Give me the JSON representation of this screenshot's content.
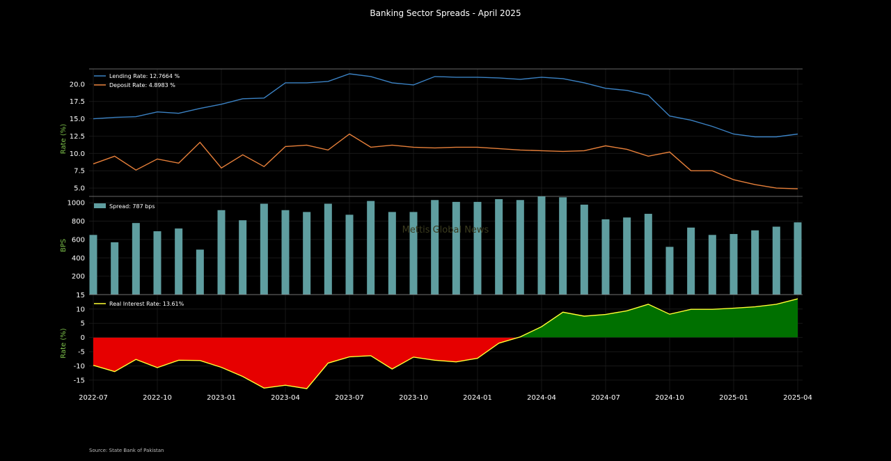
{
  "title": "Banking Sector Spreads - April 2025",
  "source": "Source: State Bank of Pakistan",
  "watermark": "Mettis Global News",
  "colors": {
    "lending": "#3b82c4",
    "deposit": "#e8803a",
    "spread_bar": "#5f9ea0",
    "real_line": "#ffff33",
    "positive_fill": "#007000",
    "negative_fill": "#e60000",
    "axis_label": "#7cc04a"
  },
  "chart_data": [
    {
      "type": "line",
      "ylabel": "Rate (%)",
      "yticks": [
        5.0,
        7.5,
        10.0,
        12.5,
        15.0,
        17.5,
        20.0
      ],
      "ylim": [
        3.8,
        22.2
      ],
      "grid": true,
      "legend_position": "top-left",
      "series": [
        {
          "name": "Lending Rate: 12.7664 %",
          "key": "lending",
          "values": [
            15.0,
            15.2,
            15.3,
            16.0,
            15.8,
            16.5,
            17.1,
            17.9,
            18.0,
            20.2,
            20.2,
            20.4,
            21.5,
            21.1,
            20.2,
            19.9,
            21.1,
            21.0,
            21.0,
            20.9,
            20.7,
            21.0,
            20.8,
            20.2,
            19.4,
            19.1,
            18.4,
            15.4,
            14.8,
            13.9,
            12.8,
            12.4,
            12.4,
            12.8
          ]
        },
        {
          "name": "Deposit Rate: 4.8983 %",
          "key": "deposit",
          "values": [
            8.5,
            9.6,
            7.6,
            9.2,
            8.6,
            11.6,
            7.9,
            9.8,
            8.1,
            11.0,
            11.2,
            10.5,
            12.8,
            10.9,
            11.2,
            10.9,
            10.8,
            10.9,
            10.9,
            10.7,
            10.5,
            10.4,
            10.3,
            10.4,
            11.1,
            10.6,
            9.6,
            10.2,
            7.5,
            7.5,
            6.2,
            5.5,
            5.0,
            4.9
          ]
        }
      ]
    },
    {
      "type": "bar",
      "ylabel": "BPS",
      "yticks": [
        200,
        400,
        600,
        800,
        1000
      ],
      "ylim": [
        0,
        1070
      ],
      "grid": true,
      "legend_position": "top-left",
      "series": [
        {
          "name": "Spread: 787 bps",
          "values": [
            650,
            570,
            780,
            690,
            720,
            490,
            920,
            810,
            990,
            920,
            900,
            990,
            870,
            1020,
            900,
            900,
            1030,
            1010,
            1010,
            1040,
            1030,
            1070,
            1060,
            980,
            820,
            840,
            880,
            520,
            730,
            650,
            660,
            700,
            740,
            787
          ]
        }
      ]
    },
    {
      "type": "area",
      "ylabel": "Rate (%)",
      "yticks": [
        -15,
        -10,
        -5,
        0,
        5,
        10,
        15
      ],
      "ylim": [
        -19.2,
        15.1
      ],
      "grid": true,
      "legend_position": "top-left",
      "series": [
        {
          "name": "Real Interest Rate: 13.61%",
          "values": [
            -9.8,
            -12.0,
            -7.7,
            -10.6,
            -8.0,
            -8.1,
            -10.5,
            -13.7,
            -17.8,
            -16.8,
            -18.0,
            -9.0,
            -6.8,
            -6.4,
            -11.1,
            -6.9,
            -8.0,
            -8.6,
            -7.3,
            -2.0,
            0.2,
            3.8,
            8.9,
            7.5,
            8.1,
            9.4,
            11.7,
            8.2,
            9.9,
            9.9,
            10.3,
            10.8,
            11.7,
            13.61
          ]
        }
      ]
    }
  ],
  "x": [
    "2022-07",
    "2022-08",
    "2022-09",
    "2022-10",
    "2022-11",
    "2022-12",
    "2023-01",
    "2023-02",
    "2023-03",
    "2023-04",
    "2023-05",
    "2023-06",
    "2023-07",
    "2023-08",
    "2023-09",
    "2023-10",
    "2023-11",
    "2023-12",
    "2024-01",
    "2024-02",
    "2024-03",
    "2024-04",
    "2024-05",
    "2024-06",
    "2024-07",
    "2024-08",
    "2024-09",
    "2024-10",
    "2024-11",
    "2024-12",
    "2025-01",
    "2025-02",
    "2025-03",
    "2025-04"
  ],
  "xticks": [
    "2022-07",
    "2022-10",
    "2023-01",
    "2023-04",
    "2023-07",
    "2023-10",
    "2024-01",
    "2024-04",
    "2024-07",
    "2024-10",
    "2025-01",
    "2025-04"
  ]
}
